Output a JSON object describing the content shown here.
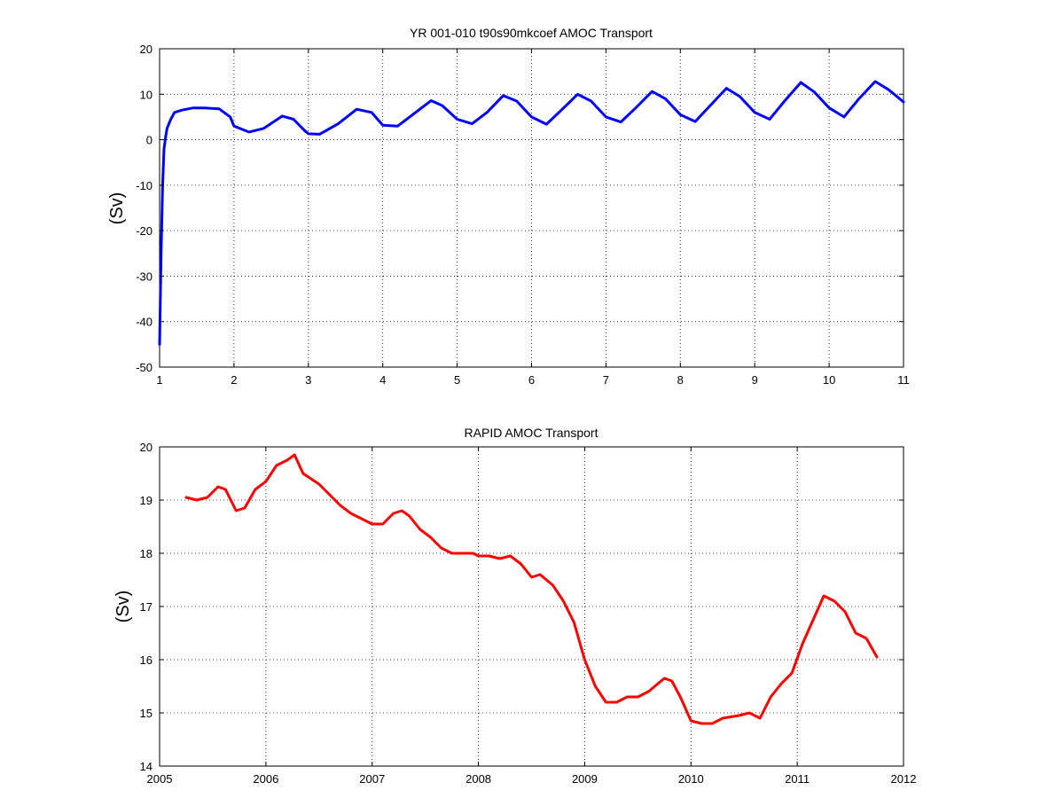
{
  "chart_data": [
    {
      "type": "line",
      "title": "YR 001-010 t90s90mkcoef AMOC Transport",
      "xlabel": "",
      "ylabel": "(Sv)",
      "xlim": [
        1,
        11
      ],
      "ylim": [
        -50,
        20
      ],
      "xticks": [
        1,
        2,
        3,
        4,
        5,
        6,
        7,
        8,
        9,
        10,
        11
      ],
      "yticks": [
        -50,
        -40,
        -30,
        -20,
        -10,
        0,
        10,
        20
      ],
      "xtick_labels": [
        "1",
        "2",
        "3",
        "4",
        "5",
        "6",
        "7",
        "8",
        "9",
        "10",
        "11"
      ],
      "ytick_labels": [
        "-50",
        "-40",
        "-30",
        "-20",
        "-10",
        "0",
        "10",
        "20"
      ],
      "grid": true,
      "series": [
        {
          "color": "#0000ff",
          "x": [
            1.0,
            1.02,
            1.04,
            1.06,
            1.08,
            1.1,
            1.15,
            1.2,
            1.3,
            1.45,
            1.6,
            1.8,
            1.95,
            2.0,
            2.2,
            2.4,
            2.65,
            2.8,
            2.95,
            3.0,
            3.15,
            3.4,
            3.65,
            3.85,
            4.0,
            4.2,
            4.4,
            4.65,
            4.8,
            5.0,
            5.2,
            5.4,
            5.62,
            5.8,
            6.0,
            6.2,
            6.4,
            6.62,
            6.8,
            7.0,
            7.2,
            7.4,
            7.62,
            7.8,
            8.0,
            8.2,
            8.4,
            8.62,
            8.8,
            9.0,
            9.2,
            9.4,
            9.62,
            9.8,
            10.0,
            10.2,
            10.4,
            10.62,
            10.8,
            11.0
          ],
          "y": [
            -45,
            -25,
            -10,
            -2,
            0.5,
            2.5,
            4.5,
            6.0,
            6.5,
            7.0,
            7.0,
            6.8,
            5.0,
            3.0,
            1.7,
            2.5,
            5.2,
            4.5,
            2.0,
            1.3,
            1.2,
            3.5,
            6.7,
            6.0,
            3.2,
            3.0,
            5.5,
            8.6,
            7.5,
            4.5,
            3.5,
            6.0,
            9.7,
            8.5,
            5.0,
            3.4,
            6.5,
            10.0,
            8.5,
            5.0,
            3.9,
            7.0,
            10.6,
            9.0,
            5.5,
            4.0,
            7.5,
            11.3,
            9.5,
            6.0,
            4.5,
            8.5,
            12.6,
            10.5,
            7.0,
            5.0,
            9.0,
            12.8,
            11.0,
            8.3
          ]
        }
      ]
    },
    {
      "type": "line",
      "title": "RAPID AMOC Transport",
      "xlabel": "",
      "ylabel": "(Sv)",
      "xlim": [
        2005,
        2012
      ],
      "ylim": [
        14,
        20
      ],
      "xticks": [
        2005,
        2006,
        2007,
        2008,
        2009,
        2010,
        2011,
        2012
      ],
      "yticks": [
        14,
        15,
        16,
        17,
        18,
        19,
        20
      ],
      "xtick_labels": [
        "2005",
        "2006",
        "2007",
        "2008",
        "2009",
        "2010",
        "2011",
        "2012"
      ],
      "ytick_labels": [
        "14",
        "15",
        "16",
        "17",
        "18",
        "19",
        "20"
      ],
      "grid": true,
      "series": [
        {
          "color": "#ff0000",
          "x": [
            2005.25,
            2005.35,
            2005.45,
            2005.55,
            2005.62,
            2005.72,
            2005.8,
            2005.9,
            2006.0,
            2006.1,
            2006.2,
            2006.27,
            2006.35,
            2006.5,
            2006.6,
            2006.7,
            2006.8,
            2006.9,
            2007.0,
            2007.1,
            2007.2,
            2007.28,
            2007.35,
            2007.45,
            2007.55,
            2007.65,
            2007.75,
            2007.85,
            2007.95,
            2008.0,
            2008.1,
            2008.2,
            2008.3,
            2008.4,
            2008.5,
            2008.58,
            2008.7,
            2008.8,
            2008.9,
            2009.0,
            2009.1,
            2009.2,
            2009.3,
            2009.4,
            2009.5,
            2009.6,
            2009.75,
            2009.82,
            2009.9,
            2010.0,
            2010.1,
            2010.2,
            2010.3,
            2010.45,
            2010.55,
            2010.65,
            2010.75,
            2010.85,
            2010.95,
            2011.05,
            2011.15,
            2011.25,
            2011.35,
            2011.45,
            2011.55,
            2011.65,
            2011.75
          ],
          "y": [
            19.05,
            19.0,
            19.05,
            19.25,
            19.2,
            18.8,
            18.85,
            19.2,
            19.35,
            19.65,
            19.75,
            19.85,
            19.5,
            19.3,
            19.1,
            18.9,
            18.75,
            18.65,
            18.55,
            18.55,
            18.75,
            18.8,
            18.7,
            18.45,
            18.3,
            18.1,
            18.0,
            18.0,
            18.0,
            17.95,
            17.95,
            17.9,
            17.95,
            17.8,
            17.55,
            17.6,
            17.4,
            17.1,
            16.7,
            16.0,
            15.5,
            15.2,
            15.2,
            15.3,
            15.3,
            15.4,
            15.65,
            15.6,
            15.3,
            14.85,
            14.8,
            14.8,
            14.9,
            14.95,
            15.0,
            14.9,
            15.3,
            15.55,
            15.75,
            16.3,
            16.75,
            17.2,
            17.1,
            16.9,
            16.5,
            16.4,
            16.05
          ]
        }
      ]
    }
  ]
}
